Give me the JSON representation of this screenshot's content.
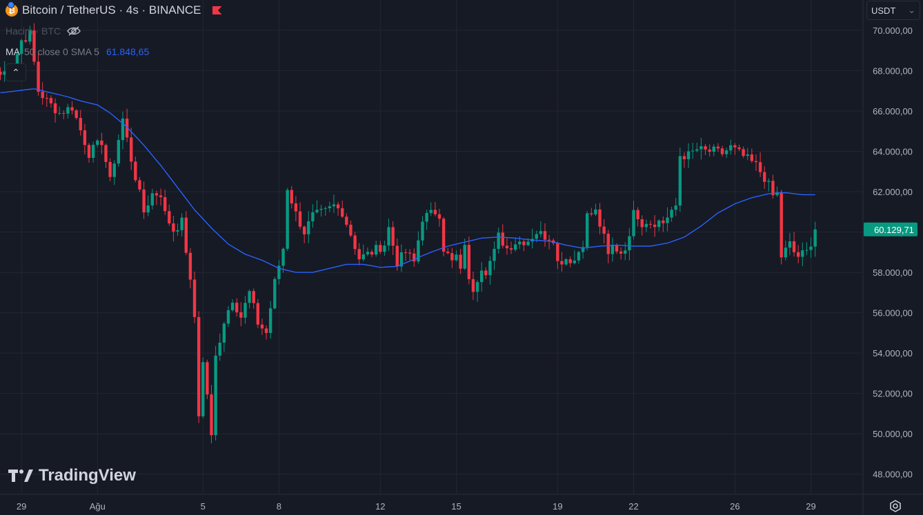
{
  "header": {
    "symbol": "Bitcoin / TetherUS · 4s · BINANCE",
    "coin_icon": "bitcoin-icon",
    "coin_icon_glyph": "₿",
    "volume_label": "Hacim · BTC",
    "ma_name": "MA",
    "ma_params": "50 close 0 SMA 5",
    "ma_value": "61.848,65"
  },
  "toolbar": {
    "currency": "USDT",
    "currency_caret": "⌄",
    "collapse_glyph": "⌃"
  },
  "branding": {
    "logo_text": "TradingView"
  },
  "colors": {
    "background": "#161A25",
    "grid": "#242733",
    "up": "#089981",
    "down": "#F23645",
    "ma": "#2962FF",
    "text": "#D1D4DC",
    "axis_text": "#B2B5BE",
    "price_label_bg": "#089981"
  },
  "chart_data": {
    "type": "candlestick",
    "ylim": [
      47000,
      71500
    ],
    "y_ticks": [
      48000,
      50000,
      52000,
      54000,
      56000,
      58000,
      60000,
      62000,
      64000,
      66000,
      68000,
      70000
    ],
    "y_tick_labels": [
      "48.000,00",
      "50.000,00",
      "52.000,00",
      "54.000,00",
      "56.000,00",
      "58.000,00",
      "60.000,00",
      "62.000,00",
      "64.000,00",
      "66.000,00",
      "68.000,00",
      "70.000,00"
    ],
    "x_ticks": [
      {
        "label": "29",
        "bar": 5
      },
      {
        "label": "Ağu",
        "bar": 23
      },
      {
        "label": "5",
        "bar": 48
      },
      {
        "label": "8",
        "bar": 66
      },
      {
        "label": "12",
        "bar": 90
      },
      {
        "label": "15",
        "bar": 108
      },
      {
        "label": "19",
        "bar": 132
      },
      {
        "label": "22",
        "bar": 150
      },
      {
        "label": "26",
        "bar": 174
      },
      {
        "label": "29",
        "bar": 192
      }
    ],
    "last_price": 60129.71,
    "last_price_label": "60.129,71",
    "anchors": [
      [
        0,
        67800
      ],
      [
        3,
        68200
      ],
      [
        5,
        69500
      ],
      [
        7,
        69800
      ],
      [
        9,
        67000
      ],
      [
        11,
        66500
      ],
      [
        14,
        65900
      ],
      [
        17,
        66200
      ],
      [
        21,
        63900
      ],
      [
        24,
        64500
      ],
      [
        26,
        62500
      ],
      [
        28,
        64600
      ],
      [
        29,
        65600
      ],
      [
        31,
        63600
      ],
      [
        34,
        61000
      ],
      [
        36,
        61900
      ],
      [
        38,
        61900
      ],
      [
        39,
        60900
      ],
      [
        41,
        60100
      ],
      [
        43,
        60500
      ],
      [
        44,
        59100
      ],
      [
        46,
        55800
      ],
      [
        47,
        51000
      ],
      [
        48,
        53500
      ],
      [
        49,
        52000
      ],
      [
        50,
        49800
      ],
      [
        51,
        53800
      ],
      [
        53,
        55600
      ],
      [
        55,
        56700
      ],
      [
        57,
        55800
      ],
      [
        59,
        57000
      ],
      [
        61,
        55500
      ],
      [
        63,
        55000
      ],
      [
        65,
        57500
      ],
      [
        67,
        59200
      ],
      [
        68,
        62200
      ],
      [
        70,
        60900
      ],
      [
        72,
        60000
      ],
      [
        74,
        60800
      ],
      [
        77,
        61000
      ],
      [
        79,
        61300
      ],
      [
        81,
        61000
      ],
      [
        83,
        59900
      ],
      [
        85,
        58700
      ],
      [
        88,
        59000
      ],
      [
        91,
        59400
      ],
      [
        92,
        60200
      ],
      [
        94,
        58500
      ],
      [
        96,
        59000
      ],
      [
        98,
        58500
      ],
      [
        100,
        60700
      ],
      [
        103,
        61000
      ],
      [
        104,
        60900
      ],
      [
        105,
        59200
      ],
      [
        107,
        58500
      ],
      [
        108,
        58800
      ],
      [
        109,
        58000
      ],
      [
        110,
        59500
      ],
      [
        111,
        57500
      ],
      [
        112,
        57200
      ],
      [
        114,
        58300
      ],
      [
        115,
        58100
      ],
      [
        117,
        59000
      ],
      [
        118,
        59800
      ],
      [
        120,
        59200
      ],
      [
        122,
        59500
      ],
      [
        125,
        59600
      ],
      [
        127,
        60000
      ],
      [
        129,
        59800
      ],
      [
        131,
        59700
      ],
      [
        132,
        58500
      ],
      [
        134,
        58700
      ],
      [
        136,
        58600
      ],
      [
        138,
        59500
      ],
      [
        139,
        60800
      ],
      [
        141,
        61000
      ],
      [
        143,
        59700
      ],
      [
        144,
        58800
      ],
      [
        145,
        59300
      ],
      [
        147,
        59000
      ],
      [
        149,
        59600
      ],
      [
        150,
        61300
      ],
      [
        152,
        60400
      ],
      [
        154,
        60600
      ],
      [
        155,
        60200
      ],
      [
        156,
        60600
      ],
      [
        157,
        60500
      ],
      [
        159,
        60900
      ],
      [
        160,
        61300
      ],
      [
        161,
        63800
      ],
      [
        163,
        63800
      ],
      [
        165,
        64100
      ],
      [
        167,
        64000
      ],
      [
        169,
        64000
      ],
      [
        171,
        63900
      ],
      [
        173,
        64200
      ],
      [
        175,
        63900
      ],
      [
        177,
        63600
      ],
      [
        179,
        63300
      ],
      [
        181,
        62700
      ],
      [
        182,
        62300
      ],
      [
        183,
        61800
      ],
      [
        184,
        61900
      ],
      [
        185,
        58800
      ],
      [
        187,
        59400
      ],
      [
        188,
        59000
      ],
      [
        189,
        58800
      ],
      [
        191,
        59000
      ],
      [
        192,
        59500
      ],
      [
        193,
        60130
      ]
    ],
    "ma_anchors": [
      [
        0,
        66900
      ],
      [
        4,
        67000
      ],
      [
        8,
        67100
      ],
      [
        12,
        66900
      ],
      [
        16,
        66700
      ],
      [
        19,
        66500
      ],
      [
        23,
        66300
      ],
      [
        26,
        65900
      ],
      [
        30,
        65200
      ],
      [
        34,
        64300
      ],
      [
        38,
        63300
      ],
      [
        42,
        62200
      ],
      [
        46,
        61100
      ],
      [
        50,
        60200
      ],
      [
        54,
        59400
      ],
      [
        58,
        58900
      ],
      [
        62,
        58600
      ],
      [
        66,
        58200
      ],
      [
        70,
        58000
      ],
      [
        74,
        58000
      ],
      [
        78,
        58200
      ],
      [
        82,
        58400
      ],
      [
        86,
        58400
      ],
      [
        90,
        58250
      ],
      [
        94,
        58300
      ],
      [
        98,
        58650
      ],
      [
        102,
        59000
      ],
      [
        106,
        59300
      ],
      [
        110,
        59500
      ],
      [
        114,
        59700
      ],
      [
        118,
        59750
      ],
      [
        122,
        59700
      ],
      [
        126,
        59600
      ],
      [
        130,
        59550
      ],
      [
        134,
        59350
      ],
      [
        138,
        59200
      ],
      [
        142,
        59300
      ],
      [
        146,
        59350
      ],
      [
        150,
        59300
      ],
      [
        154,
        59300
      ],
      [
        158,
        59450
      ],
      [
        162,
        59750
      ],
      [
        166,
        60300
      ],
      [
        170,
        60950
      ],
      [
        174,
        61400
      ],
      [
        178,
        61700
      ],
      [
        182,
        61900
      ],
      [
        186,
        61950
      ],
      [
        190,
        61850
      ],
      [
        193,
        61850
      ]
    ]
  }
}
